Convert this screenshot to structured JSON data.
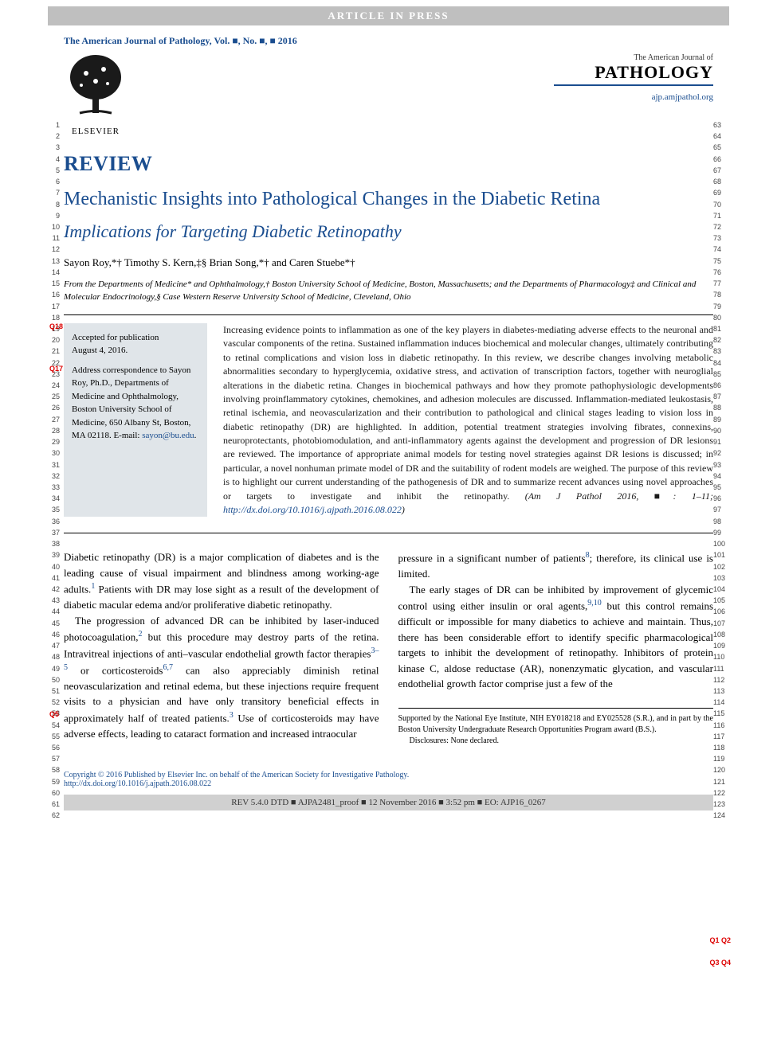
{
  "header_bar": "ARTICLE IN PRESS",
  "citation": "The American Journal of Pathology, Vol. ■, No. ■, ■ 2016",
  "elsevier": "ELSEVIER",
  "journal": {
    "pretitle": "The American Journal of",
    "title": "PATHOLOGY",
    "url": "ajp.amjpathol.org"
  },
  "review_label": "REVIEW",
  "title": "Mechanistic Insights into Pathological Changes in the Diabetic Retina",
  "subtitle": "Implications for Targeting Diabetic Retinopathy",
  "authors": "Sayon Roy,*† Timothy S. Kern,‡§ Brian Song,*† and Caren Stuebe*†",
  "affiliations": "From the Departments of Medicine* and Ophthalmology,† Boston University School of Medicine, Boston, Massachusetts; and the Departments of Pharmacology‡ and Clinical and Molecular Endocrinology,§ Case Western Reserve University School of Medicine, Cleveland, Ohio",
  "acceptance": {
    "accepted_label": "Accepted for publication",
    "accepted_date": "August 4, 2016.",
    "address": "Address correspondence to Sayon Roy, Ph.D., Departments of Medicine and Ophthalmology, Boston University School of Medicine, 650 Albany St, Boston, MA 02118. E-mail: ",
    "email": "sayon@bu.edu",
    "period": "."
  },
  "abstract": "Increasing evidence points to inflammation as one of the key players in diabetes-mediating adverse effects to the neuronal and vascular components of the retina. Sustained inflammation induces biochemical and molecular changes, ultimately contributing to retinal complications and vision loss in diabetic retinopathy. In this review, we describe changes involving metabolic abnormalities secondary to hyperglycemia, oxidative stress, and activation of transcription factors, together with neuroglial alterations in the diabetic retina. Changes in biochemical pathways and how they promote pathophysiologic developments involving proinflammatory cytokines, chemokines, and adhesion molecules are discussed. Inflammation-mediated leukostasis, retinal ischemia, and neovascularization and their contribution to pathological and clinical stages leading to vision loss in diabetic retinopathy (DR) are highlighted. In addition, potential treatment strategies involving fibrates, connexins, neuroprotectants, photobiomodulation, and anti-inflammatory agents against the development and progression of DR lesions are reviewed. The importance of appropriate animal models for testing novel strategies against DR lesions is discussed; in particular, a novel nonhuman primate model of DR and the suitability of rodent models are weighed. The purpose of this review is to highlight our current understanding of the pathogenesis of DR and to summarize recent advances using novel approaches or targets to investigate and inhibit the retinopathy. ",
  "abstract_cite": "(Am J Pathol 2016, ■: 1–11; ",
  "abstract_doi": "http://dx.doi.org/10.1016/j.ajpath.2016.08.022",
  "abstract_close": ")",
  "body": {
    "left": {
      "p1a": "Diabetic retinopathy (DR) is a major complication of diabetes and is the leading cause of visual impairment and blindness among working-age adults.",
      "p1b": " Patients with DR may lose sight as a result of the development of diabetic macular edema and/or proliferative diabetic retinopathy.",
      "p2a": "The progression of advanced DR can be inhibited by laser-induced photocoagulation,",
      "p2b": " but this procedure may destroy parts of the retina. Intravitreal injections of anti–vascular endothelial growth factor therapies",
      "p2c": " or corticosteroids",
      "p2d": " can also appreciably diminish retinal neovascularization and retinal edema, but these injections require frequent visits to a physician and have only transitory beneficial effects in approximately half of treated patients.",
      "p2e": " Use of corticosteroids may have adverse effects, leading to cataract formation and increased intraocular",
      "ref1": "1",
      "ref2": "2",
      "ref3_5": "3–5",
      "ref6_7": "6,7",
      "ref3": "3"
    },
    "right": {
      "p1a": "pressure in a significant number of patients",
      "p1b": "; therefore, its clinical use is limited.",
      "p2a": "The early stages of DR can be inhibited by improvement of glycemic control using either insulin or oral agents,",
      "p2b": " but this control remains difficult or impossible for many diabetics to achieve and maintain. Thus, there has been considerable effort to identify specific pharmacological targets to inhibit the development of retinopathy. Inhibitors of protein kinase C, aldose reductase (AR), nonenzymatic glycation, and vascular endothelial growth factor comprise just a few of the",
      "ref8": "8",
      "ref9_10": "9,10"
    }
  },
  "funding": {
    "p1": "Supported by the National Eye Institute, NIH EY018218 and EY025528 (S.R.), and in part by the Boston University Undergraduate Research Opportunities Program award (B.S.).",
    "p2": "Disclosures: None declared."
  },
  "footer": {
    "copyright": "Copyright © 2016 Published by Elsevier Inc. on behalf of the American Society for Investigative Pathology.",
    "doi": "http://dx.doi.org/10.1016/j.ajpath.2016.08.022",
    "bar": "REV 5.4.0 DTD ■ AJPA2481_proof ■ 12 November 2016 ■ 3:52 pm ■ EO: AJP16_0267"
  },
  "markers": {
    "q18": "Q18",
    "q17": "Q17",
    "q5": "Q5",
    "q1q2": "Q1 Q2",
    "q3q4": "Q3 Q4"
  },
  "line_numbers": {
    "left_start": 1,
    "left_end": 62,
    "right_start": 63,
    "right_end": 124
  },
  "colors": {
    "brand_blue": "#1a4d8f",
    "header_gray": "#bfbfbf",
    "box_gray": "#e0e5e9",
    "footer_gray": "#d0d0d0",
    "marker_red": "#d00"
  }
}
